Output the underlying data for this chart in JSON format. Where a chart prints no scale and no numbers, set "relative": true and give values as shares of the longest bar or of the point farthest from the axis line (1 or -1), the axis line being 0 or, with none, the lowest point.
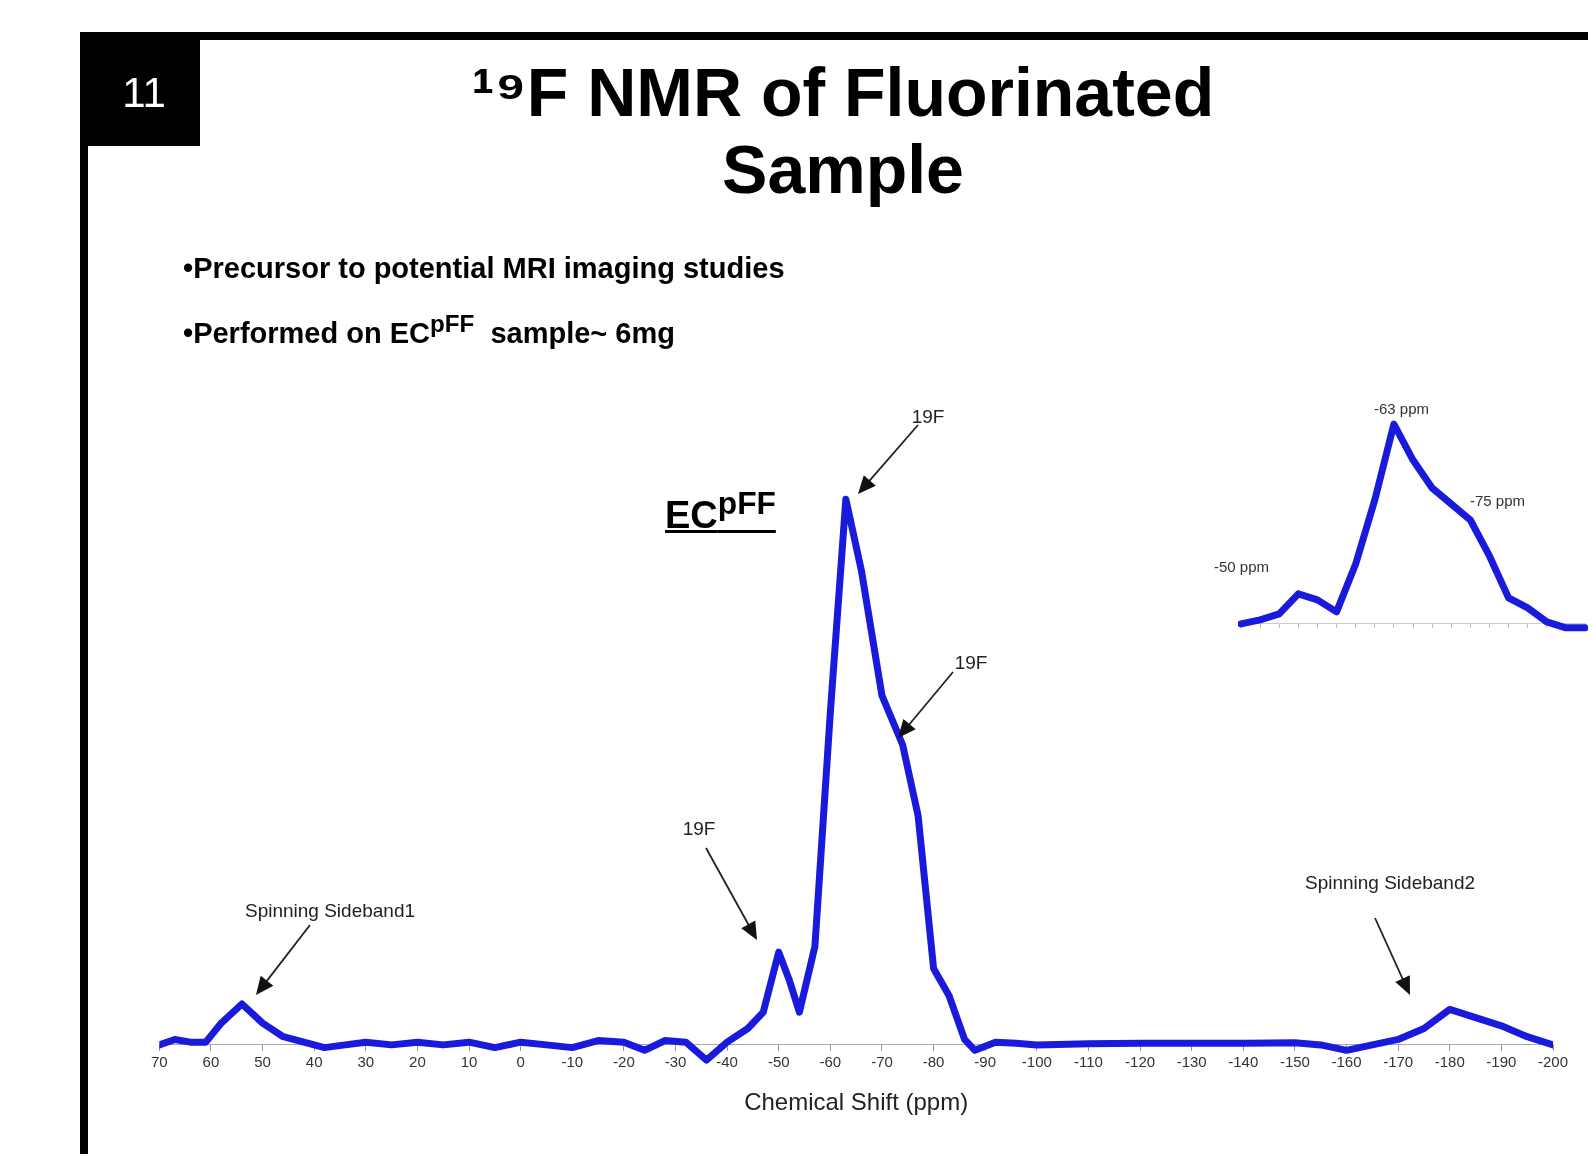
{
  "chart_data": [
    {
      "type": "line",
      "title": "¹⁹F NMR of Fluorinated Sample",
      "xlabel": "Chemical Shift (ppm)",
      "relative": true,
      "xlim": [
        70,
        -200
      ],
      "xticks": [
        70,
        60,
        50,
        40,
        30,
        20,
        10,
        0,
        -10,
        -20,
        -30,
        -40,
        -50,
        -60,
        -70,
        -80,
        -90,
        -100,
        -110,
        -120,
        -130,
        -140,
        -150,
        -160,
        -170,
        -180,
        -190,
        -200
      ],
      "legend": false,
      "marker": "none",
      "line_style": "solid",
      "series": [
        {
          "color": "#1a1adc",
          "x": [
            70,
            67,
            64,
            61,
            58,
            54,
            50,
            46,
            42,
            38,
            34,
            30,
            25,
            20,
            15,
            10,
            5,
            0,
            -5,
            -10,
            -15,
            -20,
            -24,
            -28,
            -32,
            -36,
            -40,
            -44,
            -47,
            -50,
            -52,
            -54,
            -57,
            -60,
            -63,
            -66,
            -70,
            -74,
            -77,
            -80,
            -83,
            -86,
            -88,
            -92,
            -96,
            -100,
            -110,
            -120,
            -130,
            -140,
            -150,
            -155,
            -160,
            -165,
            -170,
            -175,
            -180,
            -185,
            -190,
            -195,
            -200
          ],
          "values": [
            0,
            0.01,
            0.005,
            0.005,
            0.04,
            0.075,
            0.04,
            0.015,
            0.005,
            -0.005,
            0,
            0.005,
            0,
            0.005,
            0,
            0.005,
            -0.005,
            0.005,
            0,
            -0.005,
            0.008,
            0.005,
            -0.01,
            0.008,
            0.005,
            -0.028,
            0.005,
            0.03,
            0.06,
            0.17,
            0.12,
            0.06,
            0.18,
            0.61,
            1,
            0.87,
            0.64,
            0.55,
            0.42,
            0.14,
            0.09,
            0.01,
            -0.01,
            0.005,
            0.003,
            0,
            0.002,
            0.003,
            0.003,
            0.003,
            0.004,
            0,
            -0.01,
            0,
            0.01,
            0.03,
            0.065,
            0.05,
            0.035,
            0.015,
            0
          ]
        }
      ],
      "annotations": [
        "11",
        "•Precursor to potential MRI imaging studies",
        "•Performed on EC$^{pFF}$  sample~ 6mg",
        "EC$^{pFF}$",
        "Spinning Sideband1",
        "19F",
        "19F",
        "19F",
        "Spinning Sideband2"
      ]
    },
    {
      "type": "line",
      "relative": true,
      "legend": false,
      "marker": "none",
      "line_style": "solid",
      "categories": [
        null,
        null,
        null,
        null,
        null,
        null,
        null,
        null,
        null,
        null,
        null,
        null,
        null,
        null,
        null,
        null,
        null,
        null,
        null
      ],
      "series": [
        {
          "color": "#1a1adc",
          "values": [
            0,
            0.02,
            0.05,
            0.15,
            0.12,
            0.06,
            0.3,
            0.62,
            1,
            0.82,
            0.68,
            0.6,
            0.52,
            0.34,
            0.13,
            0.08,
            0.01,
            -0.02,
            -0.02
          ]
        }
      ],
      "annotations": [
        "-50 ppm",
        "-63 ppm",
        "-75 ppm"
      ]
    }
  ]
}
